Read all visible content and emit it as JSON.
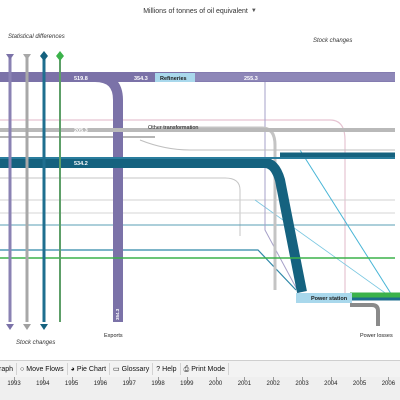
{
  "header": {
    "unit_label": "Millions of tonnes of oil equivalent",
    "unit_caret": "▼"
  },
  "labels": {
    "statistical_differences": "Statistical differences",
    "stock_changes_top": "Stock changes",
    "stock_changes_bottom": "Stock changes",
    "exports": "Exports",
    "power_losses": "Power losses",
    "refineries": "Refineries",
    "other_transformation": "Other transformation",
    "power_station": "Power station"
  },
  "flows": {
    "v519": "519.8",
    "v354": "354.3",
    "v255": "255.3",
    "v205": "205.3",
    "v534": "534.2",
    "v_exports": "354.3"
  },
  "toolbar": {
    "items": [
      {
        "label": "raph",
        "icon": ""
      },
      {
        "label": "Move Flows",
        "icon": "○"
      },
      {
        "label": "Pie Chart",
        "icon": "◕"
      },
      {
        "label": "Glossary",
        "icon": "▭"
      },
      {
        "label": "Help",
        "icon": "?"
      },
      {
        "label": "Print Mode",
        "icon": "⎙"
      }
    ]
  },
  "timeline": {
    "years": [
      "1993",
      "1994",
      "1995",
      "1996",
      "1997",
      "1998",
      "1999",
      "2000",
      "2001",
      "2002",
      "2003",
      "2004",
      "2005",
      "2006"
    ]
  },
  "colors": {
    "purple": "#7b72a8",
    "purple_light": "#a9a3cc",
    "teal": "#15627f",
    "teal_light": "#3a8fb0",
    "grey": "#b9b9b9",
    "green": "#3bb24a",
    "light_blue": "#9fd3ea"
  }
}
